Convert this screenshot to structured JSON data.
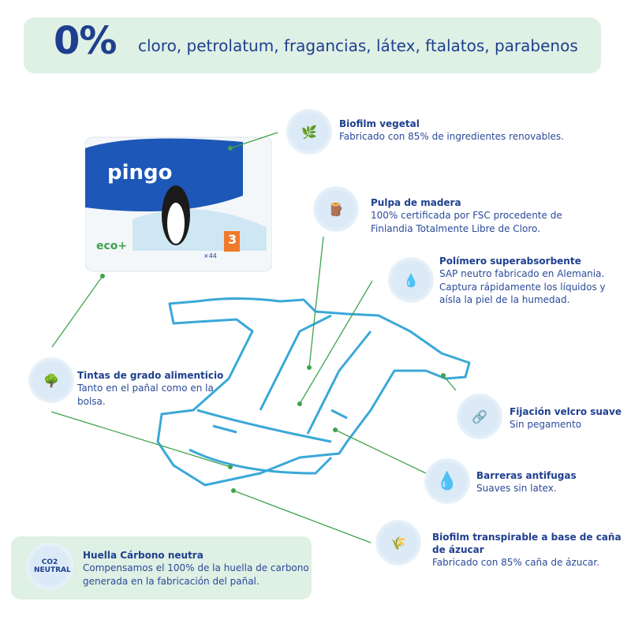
{
  "banner": {
    "percent": "0%",
    "claim": "cloro, petrolatum, fragancias, látex, ftalatos, parabenos"
  },
  "product": {
    "brand": "pingo",
    "eco_label": "eco+",
    "size": "3",
    "count": "×44"
  },
  "features": [
    {
      "title": "Biofilm vegetal",
      "lines": [
        "Fabricado con 85% de ingredientes renovables."
      ],
      "icon": "leaf-recycle-icon"
    },
    {
      "title": "Pulpa de madera",
      "lines": [
        "100% certificada por FSC procedente de",
        "Finlandia Totalmente Libre de Cloro."
      ],
      "icon": "wood-logs-icon"
    },
    {
      "title": "Polímero superabsorbente",
      "lines": [
        "SAP neutro fabricado en Alemania.",
        "Captura rápidamente los líquidos y",
        "aísla la piel de la humedad."
      ],
      "icon": "water-drops-icon"
    },
    {
      "title": "Tintas de grado alimenticio",
      "lines": [
        "Tanto en el pañal como en la",
        "bolsa."
      ],
      "icon": "tree-icon"
    },
    {
      "title": "Fijación velcro suave",
      "lines": [
        "Sin pegamento"
      ],
      "icon": "link-icon"
    },
    {
      "title": "Barreras antifugas",
      "lines": [
        "Suaves sin latex."
      ],
      "icon": "drop-icon"
    },
    {
      "title": "Biofilm transpirable a base de caña",
      "title2": "de ázucar",
      "lines": [
        "Fabricado con 85% caña de ázucar."
      ],
      "icon": "sugarcane-icon"
    }
  ],
  "carbon": {
    "title": "Huella Cárbono neutra",
    "lines": [
      "Compensamos el 100% de la huella de carbono",
      "generada en la fabricación del pañal."
    ],
    "badge": "CO2 NEUTRAL",
    "icon": "co2-neutral-icon"
  },
  "colors": {
    "navy": "#1e3f8f",
    "green_bg": "#dff0e4",
    "line_green": "#3fa34d",
    "diaper_blue": "#3aa8d8"
  }
}
